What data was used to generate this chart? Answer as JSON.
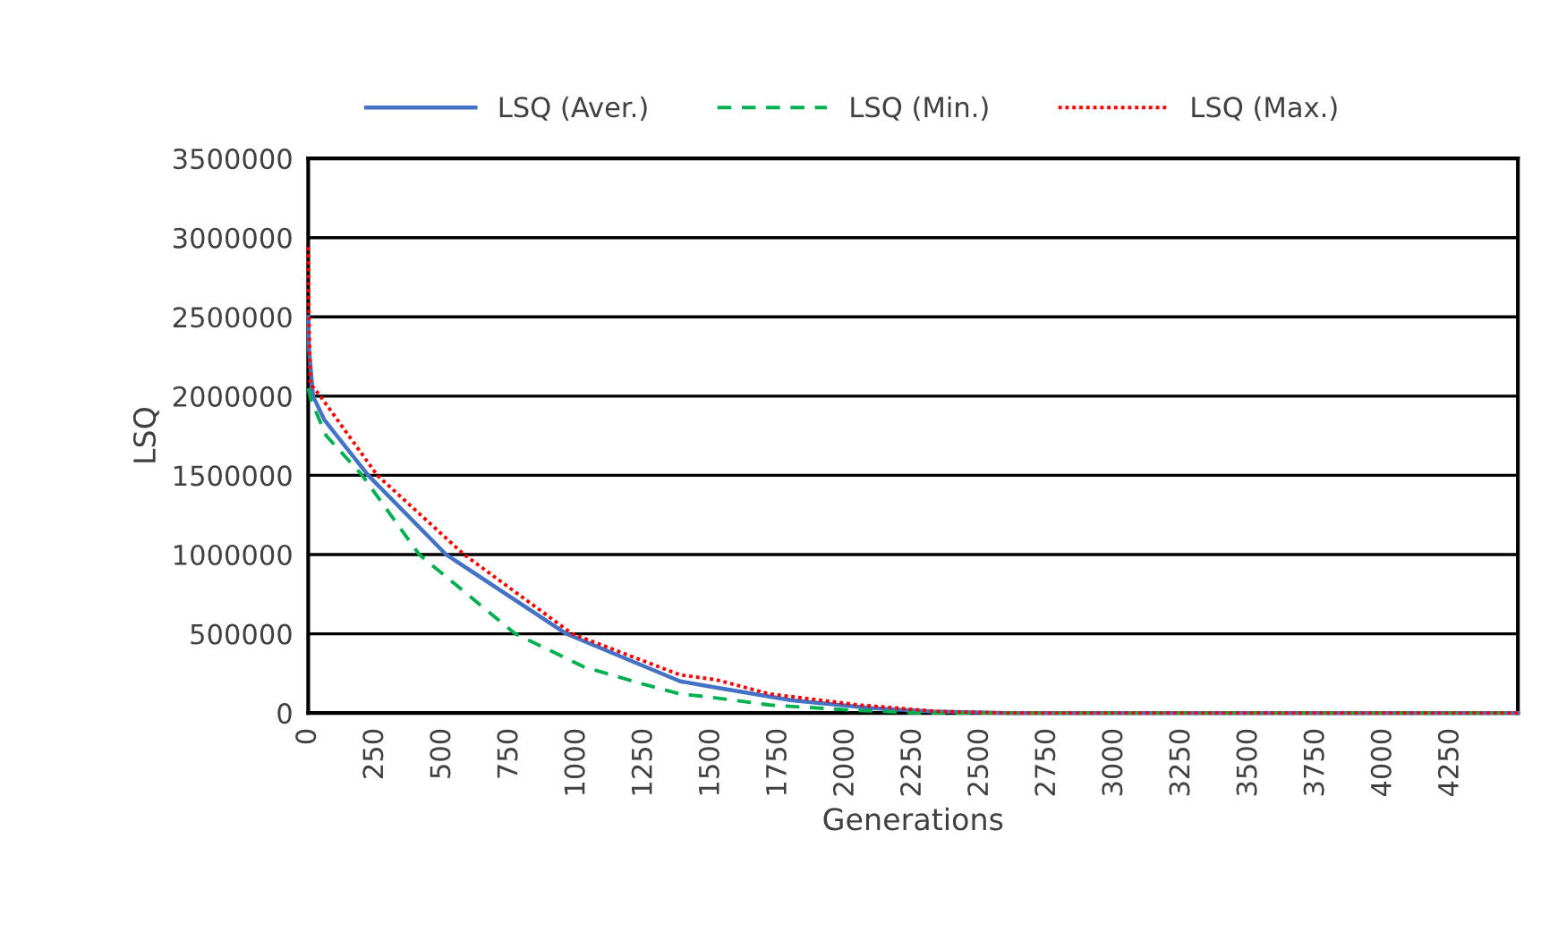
{
  "chart_data": {
    "type": "line",
    "xlabel": "Generations",
    "ylabel": "LSQ",
    "xlim": [
      0,
      4500
    ],
    "xticks": [
      0,
      250,
      500,
      750,
      1000,
      1250,
      1500,
      1750,
      2000,
      2250,
      2500,
      2750,
      3000,
      3250,
      3500,
      3750,
      4000,
      4250
    ],
    "ylim": [
      0,
      3500000
    ],
    "yticks": [
      0,
      500000,
      1000000,
      1500000,
      2000000,
      2500000,
      3000000,
      3500000
    ],
    "grid": "y",
    "legend": "top",
    "marker": "none",
    "series": [
      {
        "name": "LSQ (Aver.)",
        "color": "#4472c4",
        "line_style": "solid",
        "x": [
          0,
          3,
          18,
          60,
          223,
          513,
          960,
          1384,
          1518,
          1800,
          2100,
          2320,
          2600,
          3000,
          4000,
          4500
        ],
        "values": [
          2500000,
          2300000,
          2000000,
          1850000,
          1500000,
          1000000,
          500000,
          200000,
          160000,
          80000,
          30000,
          10000,
          0,
          0,
          0,
          0
        ]
      },
      {
        "name": "LSQ (Min.)",
        "color": "#00b050",
        "line_style": "dashed",
        "x": [
          0,
          11,
          67,
          201,
          413,
          770,
          1027,
          1250,
          1384,
          1496,
          1718,
          2000,
          2270,
          2600,
          3000,
          4000,
          4500
        ],
        "values": [
          2050000,
          1970000,
          1750000,
          1500000,
          1000000,
          500000,
          290000,
          180000,
          120000,
          100000,
          50000,
          20000,
          0,
          0,
          0,
          0,
          0
        ]
      },
      {
        "name": "LSQ (Max.)",
        "color": "#ff0000",
        "line_style": "dotted",
        "x": [
          0,
          3,
          7,
          45,
          257,
          580,
          982,
          1384,
          1518,
          1718,
          2052,
          2340,
          2600,
          3000,
          4000,
          4500
        ],
        "values": [
          2940000,
          2500000,
          2080000,
          2000000,
          1500000,
          1000000,
          500000,
          240000,
          210000,
          120000,
          50000,
          10000,
          0,
          0,
          0,
          0
        ]
      }
    ]
  }
}
